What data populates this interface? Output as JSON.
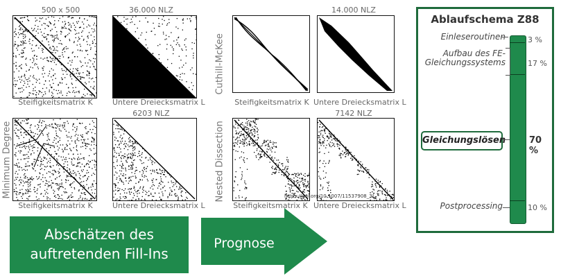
{
  "matrices": {
    "top_left_size": "500 x 500",
    "top_left_nlz": "36.000 NLZ",
    "top_right_nlz": "14.000 NLZ",
    "bottom_left_nlz": "6203 NLZ",
    "bottom_right_nlz": "7142 NLZ",
    "label_K": "Steifigkeitsmatrix  K",
    "label_L": "Untere Dreiecksmatrix  L",
    "method_cm": "Cuthill-McKee",
    "method_md": "Minimum Degree",
    "method_nd": "Nested Dissection",
    "doi": "https://doi.org/10.1007/11537908_3"
  },
  "bottom": {
    "estimate_line1": "Abschätzen des",
    "estimate_line2": "auftretenden Fill-Ins",
    "forecast": "Prognose"
  },
  "schema": {
    "title": "Ablaufschema Z88",
    "steps": [
      {
        "label": "Einleseroutinen",
        "pct": "3 %"
      },
      {
        "label": "Aufbau des FE-\nGleichungssystems",
        "pct": "17 %"
      },
      {
        "label": "Gleichungslösen",
        "pct": "70 %"
      },
      {
        "label": "Postprocessing",
        "pct": "10 %"
      }
    ],
    "colors": {
      "bar": "#1f8a4c",
      "border": "#1f6b3c"
    }
  }
}
